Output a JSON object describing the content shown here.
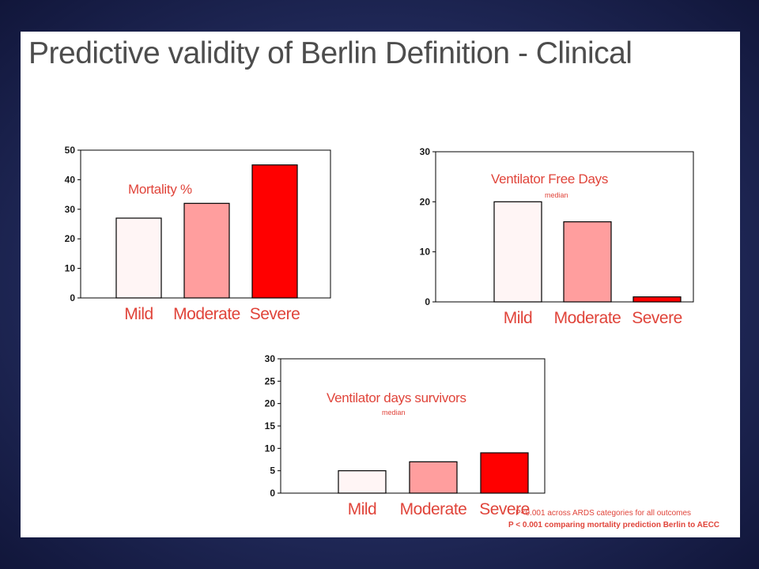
{
  "title": "Predictive validity of Berlin Definition - Clinical",
  "footnotes": [
    "P<0.001 across ARDS categories for all outcomes",
    "P < 0.001 comparing mortality prediction Berlin to AECC"
  ],
  "colors": {
    "mild": "#fff5f5",
    "moderate": "#ff9e9e",
    "severe": "#ff0000",
    "text_accent": "#e0443a"
  },
  "chart_data": [
    {
      "type": "bar",
      "title": "Mortality %",
      "subtitle": "",
      "categories": [
        "Mild",
        "Moderate",
        "Severe"
      ],
      "values": [
        27,
        32,
        45
      ],
      "ylim": [
        0,
        50
      ],
      "yticks": [
        0,
        10,
        20,
        30,
        40,
        50
      ],
      "xlabel": "",
      "ylabel": "",
      "grid": false
    },
    {
      "type": "bar",
      "title": "Ventilator Free Days",
      "subtitle": "median",
      "categories": [
        "Mild",
        "Moderate",
        "Severe"
      ],
      "values": [
        20,
        16,
        1
      ],
      "ylim": [
        0,
        30
      ],
      "yticks": [
        0,
        10,
        20,
        30
      ],
      "xlabel": "",
      "ylabel": "",
      "grid": false
    },
    {
      "type": "bar",
      "title": "Ventilator days survivors",
      "subtitle": "median",
      "categories": [
        "Mild",
        "Moderate",
        "Severe"
      ],
      "values": [
        5,
        7,
        9
      ],
      "ylim": [
        0,
        30
      ],
      "yticks": [
        0,
        5,
        10,
        15,
        20,
        25,
        30
      ],
      "xlabel": "",
      "ylabel": "",
      "grid": false
    }
  ]
}
